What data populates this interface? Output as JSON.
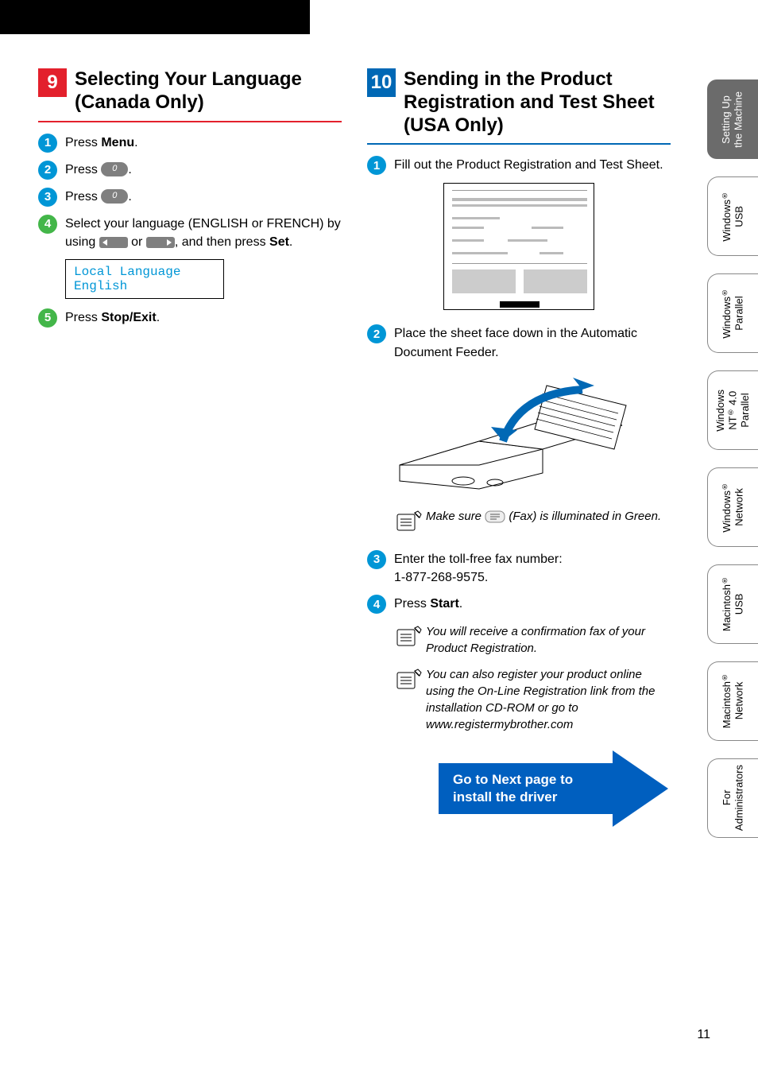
{
  "colors": {
    "step_blue": "#0096d6",
    "step_green": "#43b649",
    "sec9_bg": "#e3202c",
    "sec9_rule": "#e3202c",
    "sec10_bg": "#0068b5",
    "sec10_rule": "#0068b5",
    "arrow_blue": "#005fbf",
    "tab_current_bg": "#6b6b6b",
    "lcd_text": "#0096d6"
  },
  "page_number": "11",
  "section9": {
    "num": "9",
    "title": "Selecting Your Language (Canada Only)",
    "steps": {
      "s1_pre": "Press ",
      "s1_bold": "Menu",
      "s1_post": ".",
      "s2": "Press ",
      "s2_btn": "0",
      "s2_post": ".",
      "s3": "Press ",
      "s3_btn": "0",
      "s3_post": ".",
      "s4_a": "Select your language (ENGLISH or FRENCH) by using ",
      "s4_b": " or ",
      "s4_c": ", and then press ",
      "s4_bold": "Set",
      "s4_d": ".",
      "s5_pre": "Press ",
      "s5_bold": "Stop/Exit",
      "s5_post": "."
    },
    "lcd": {
      "l1": "Local Language",
      "l2": "English"
    }
  },
  "section10": {
    "num": "10",
    "title": "Sending in the Product Registration and Test Sheet (USA Only)",
    "steps": {
      "s1": "Fill out the Product Registration and Test Sheet.",
      "s2": "Place the sheet face down in the Automatic Document Feeder.",
      "s3_a": "Enter the toll-free fax number:",
      "s3_b": "1-877-268-9575.",
      "s4_pre": "Press ",
      "s4_bold": "Start",
      "s4_post": "."
    },
    "notes": {
      "n1_a": "Make sure ",
      "n1_b": " (Fax) is illuminated in Green.",
      "n2": "You will receive a confirmation fax of your Product Registration.",
      "n3": "You can also register your product online using the On-Line Registration link from the installation CD-ROM or go to www.registermybrother.com"
    },
    "next": "Go to Next page to install the driver"
  },
  "tabs": [
    {
      "label": "Setting Up\nthe Machine",
      "current": true
    },
    {
      "label": "Windows®\nUSB"
    },
    {
      "label": "Windows®\nParallel"
    },
    {
      "label": "Windows\nNT® 4.0\nParallel"
    },
    {
      "label": "Windows®\nNetwork"
    },
    {
      "label": "Macintosh®\nUSB"
    },
    {
      "label": "Macintosh®\nNetwork"
    },
    {
      "label": "For\nAdministrators"
    }
  ]
}
